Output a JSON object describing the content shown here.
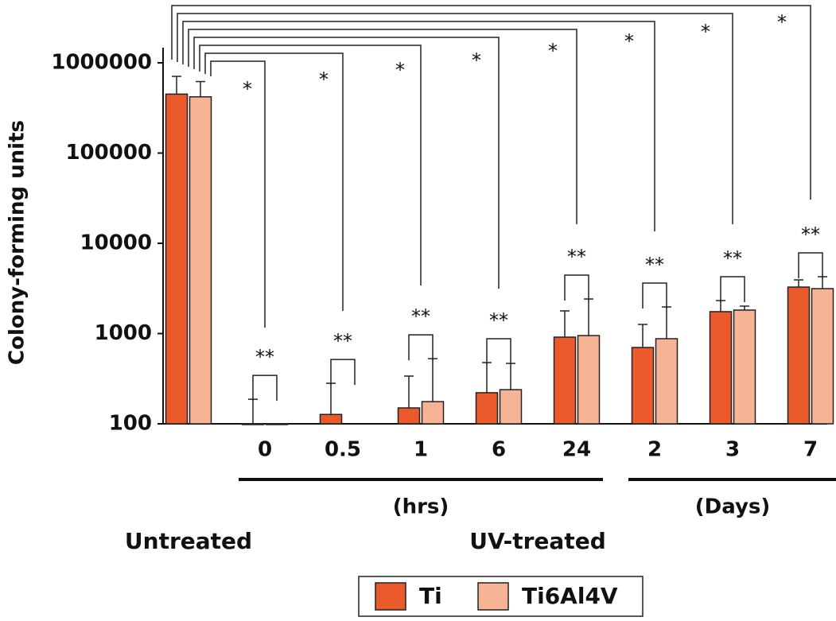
{
  "chart_data": {
    "type": "bar",
    "y_label": "Colony-forming units",
    "log_scale": true,
    "ylim": [
      100,
      1000000
    ],
    "yticks": [
      100,
      1000,
      10000,
      100000,
      1000000
    ],
    "categories": [
      null,
      "0",
      "0.5",
      "1",
      "6",
      "24",
      "2",
      "3",
      "7"
    ],
    "groups": [
      {
        "label": "Untreated",
        "sublabel": null,
        "categories": [
          0,
          0
        ]
      },
      {
        "label": "UV-treated",
        "sublabel": null,
        "categories": [
          1,
          8
        ]
      },
      {
        "label": null,
        "sublabel": "(hrs)",
        "categories": [
          1,
          5
        ]
      },
      {
        "label": null,
        "sublabel": "(Days)",
        "categories": [
          6,
          8
        ]
      }
    ],
    "series": [
      {
        "name": "Ti",
        "color": "#ea5a2b",
        "values": [
          450000,
          100,
          127,
          150,
          221,
          913,
          701,
          1748,
          3275
        ],
        "errors": [
          258000,
          87,
          154,
          188,
          256,
          870,
          561,
          573,
          658
        ]
      },
      {
        "name": "Ti6Al4V",
        "color": "#f7b495",
        "values": [
          420000,
          100,
          null,
          176,
          239,
          950,
          877,
          1820,
          3146
        ],
        "errors": [
          200000,
          null,
          null,
          351,
          228,
          1466,
          1095,
          193,
          1119
        ]
      }
    ],
    "significance_vs_untreated": [
      null,
      "*",
      "*",
      "*",
      "*",
      "*",
      "*",
      "*",
      "*"
    ],
    "significance_between_series": [
      null,
      "**",
      "**",
      "**",
      "**",
      "**",
      "**",
      "**",
      "**"
    ],
    "legend": "bottom"
  }
}
